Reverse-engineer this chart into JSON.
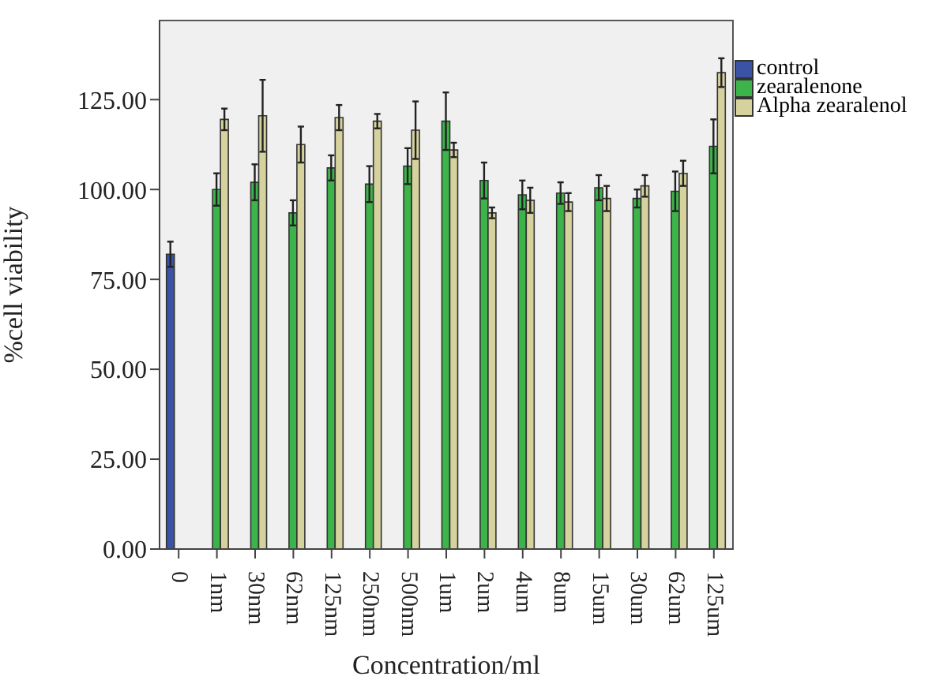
{
  "chart_data": {
    "type": "bar",
    "xlabel": "Concentration/ml",
    "ylabel": "%cell viability",
    "categories": [
      "0",
      "1nm",
      "30nm",
      "62nm",
      "125nm",
      "250nm",
      "500nm",
      "1um",
      "2um",
      "4um",
      "8um",
      "15um",
      "30um",
      "62um",
      "125um"
    ],
    "series": [
      {
        "name": "control",
        "color": "#3a53a4",
        "values": [
          82,
          null,
          null,
          null,
          null,
          null,
          null,
          null,
          null,
          null,
          null,
          null,
          null,
          null,
          null
        ],
        "errors": [
          3.5,
          null,
          null,
          null,
          null,
          null,
          null,
          null,
          null,
          null,
          null,
          null,
          null,
          null,
          null
        ]
      },
      {
        "name": "zearalenone",
        "color": "#3cb44a",
        "values": [
          null,
          100,
          102,
          93.5,
          106,
          101.5,
          106.5,
          119,
          102.5,
          98.5,
          99,
          100.5,
          97.5,
          99.5,
          112
        ],
        "errors": [
          null,
          4.5,
          5,
          3.5,
          3.5,
          5,
          5,
          8,
          5,
          4,
          3,
          3.5,
          2.5,
          5.5,
          7.5
        ]
      },
      {
        "name": "Alpha zearalenol",
        "color": "#d6d29e",
        "values": [
          null,
          119.5,
          120.5,
          112.5,
          120,
          119,
          116.5,
          111,
          93.5,
          97,
          96.5,
          97.5,
          101,
          104.5,
          132.5
        ],
        "errors": [
          null,
          3,
          10,
          5,
          3.5,
          2,
          8,
          2,
          1.5,
          3.5,
          2.5,
          3.5,
          3,
          3.5,
          4
        ]
      }
    ],
    "ylim": [
      0,
      147
    ],
    "yticks": [
      {
        "value": 0,
        "label": "0.00"
      },
      {
        "value": 25,
        "label": "25.00"
      },
      {
        "value": 50,
        "label": "50.00"
      },
      {
        "value": 75,
        "label": "75.00"
      },
      {
        "value": 100,
        "label": "100.00"
      },
      {
        "value": 125,
        "label": "125.00"
      }
    ],
    "legend": "top right"
  }
}
